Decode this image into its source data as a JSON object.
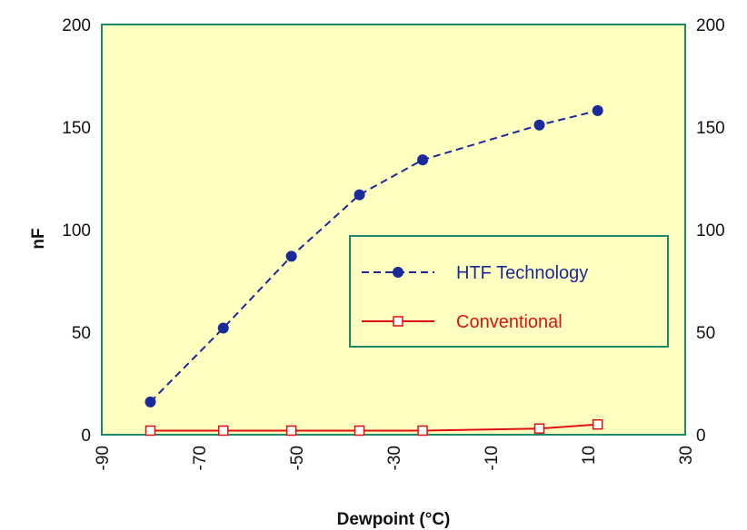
{
  "chart_data": {
    "type": "line",
    "xlabel": "Dewpoint (°C)",
    "ylabel": "nF",
    "xlim": [
      -90,
      30
    ],
    "ylim": [
      0,
      200
    ],
    "x_ticks": [
      "-90",
      "-70",
      "-50",
      "-30",
      "-10",
      "10",
      "30"
    ],
    "y_ticks": [
      "0",
      "50",
      "100",
      "150",
      "200"
    ],
    "y2_ticks": [
      "0",
      "50",
      "100",
      "150",
      "200"
    ],
    "grid": false,
    "legend_position": "center-right",
    "background": "#ffffc0",
    "series": [
      {
        "name": "HTF Technology",
        "color": "#1a2a9a",
        "line_style": "dashed",
        "marker": "filled-circle",
        "x": [
          -80,
          -65,
          -51,
          -37,
          -24,
          0,
          12
        ],
        "y": [
          16,
          52,
          87,
          117,
          134,
          151,
          158
        ]
      },
      {
        "name": "Conventional",
        "color": "#e01010",
        "line_style": "solid",
        "marker": "open-square",
        "x": [
          -80,
          -65,
          -51,
          -37,
          -24,
          0,
          12
        ],
        "y": [
          2,
          2,
          2,
          2,
          2,
          3,
          5
        ]
      }
    ]
  }
}
